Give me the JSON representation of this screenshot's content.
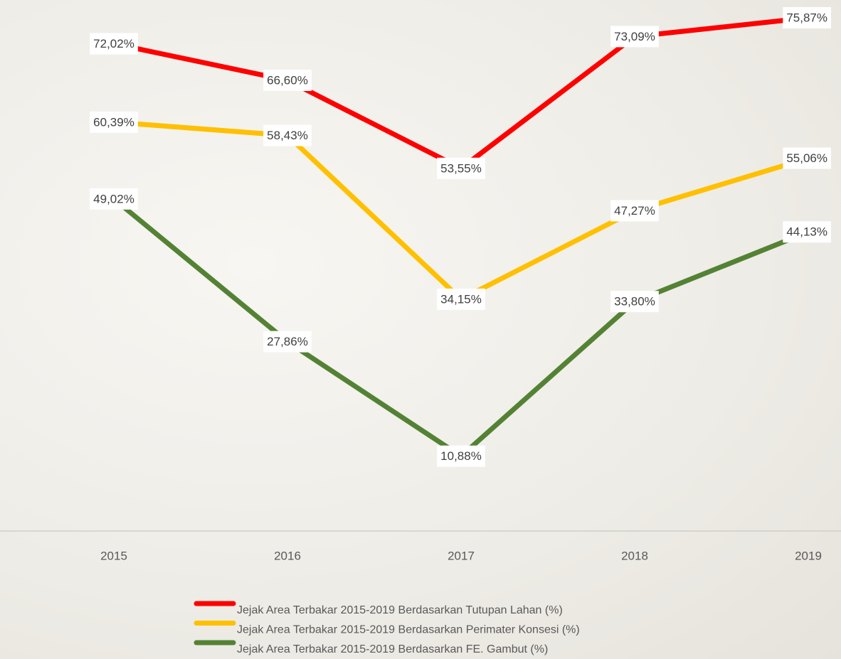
{
  "chart_data": {
    "type": "line",
    "categories": [
      "2015",
      "2016",
      "2017",
      "2018",
      "2019"
    ],
    "series": [
      {
        "name": "Jejak Area Terbakar 2015-2019 Berdasarkan Tutupan Lahan (%)",
        "color": "#ff0000",
        "values": [
          72.02,
          66.6,
          53.55,
          73.09,
          75.87
        ],
        "value_labels": [
          "72,02%",
          "66,60%",
          "53,55%",
          "73,09%",
          "75,87%"
        ]
      },
      {
        "name": "Jejak Area Terbakar 2015-2019 Berdasarkan Perimater Konsesi (%)",
        "color": "#ffc000",
        "values": [
          60.39,
          58.43,
          34.15,
          47.27,
          55.06
        ],
        "value_labels": [
          "60,39%",
          "58,43%",
          "34,15%",
          "47,27%",
          "55,06%"
        ]
      },
      {
        "name": "Jejak Area Terbakar 2015-2019 Berdasarkan FE. Gambut (%)",
        "color": "#548235",
        "values": [
          49.02,
          27.86,
          10.88,
          33.8,
          44.13
        ],
        "value_labels": [
          "49,02%",
          "27,86%",
          "10,88%",
          "33,80%",
          "44,13%"
        ]
      }
    ]
  }
}
